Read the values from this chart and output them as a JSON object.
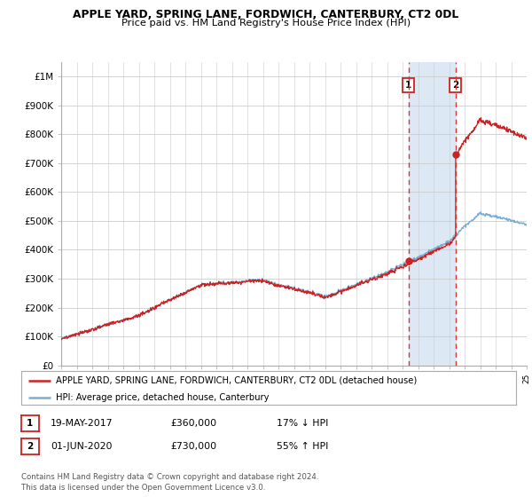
{
  "title": "APPLE YARD, SPRING LANE, FORDWICH, CANTERBURY, CT2 0DL",
  "subtitle": "Price paid vs. HM Land Registry's House Price Index (HPI)",
  "ylim": [
    0,
    1050000
  ],
  "yticks": [
    0,
    100000,
    200000,
    300000,
    400000,
    500000,
    600000,
    700000,
    800000,
    900000,
    1000000
  ],
  "ytick_labels": [
    "£0",
    "£100K",
    "£200K",
    "£300K",
    "£400K",
    "£500K",
    "£600K",
    "£700K",
    "£800K",
    "£900K",
    "£1M"
  ],
  "hpi_color": "#7aadd4",
  "price_color": "#cc2222",
  "vline_color": "#dd3333",
  "span_color": "#dce9f5",
  "annotation_box_color": "#cc2222",
  "background_color": "#ffffff",
  "grid_color": "#cccccc",
  "sale1_x": 2017.38,
  "sale1_y": 360000,
  "sale2_x": 2020.42,
  "sale2_y": 730000,
  "legend_label_price": "APPLE YARD, SPRING LANE, FORDWICH, CANTERBURY, CT2 0DL (detached house)",
  "legend_label_hpi": "HPI: Average price, detached house, Canterbury",
  "table_row1": [
    "1",
    "19-MAY-2017",
    "£360,000",
    "17% ↓ HPI"
  ],
  "table_row2": [
    "2",
    "01-JUN-2020",
    "£730,000",
    "55% ↑ HPI"
  ],
  "footnote": "Contains HM Land Registry data © Crown copyright and database right 2024.\nThis data is licensed under the Open Government Licence v3.0.",
  "xmin": 1995,
  "xmax": 2025
}
